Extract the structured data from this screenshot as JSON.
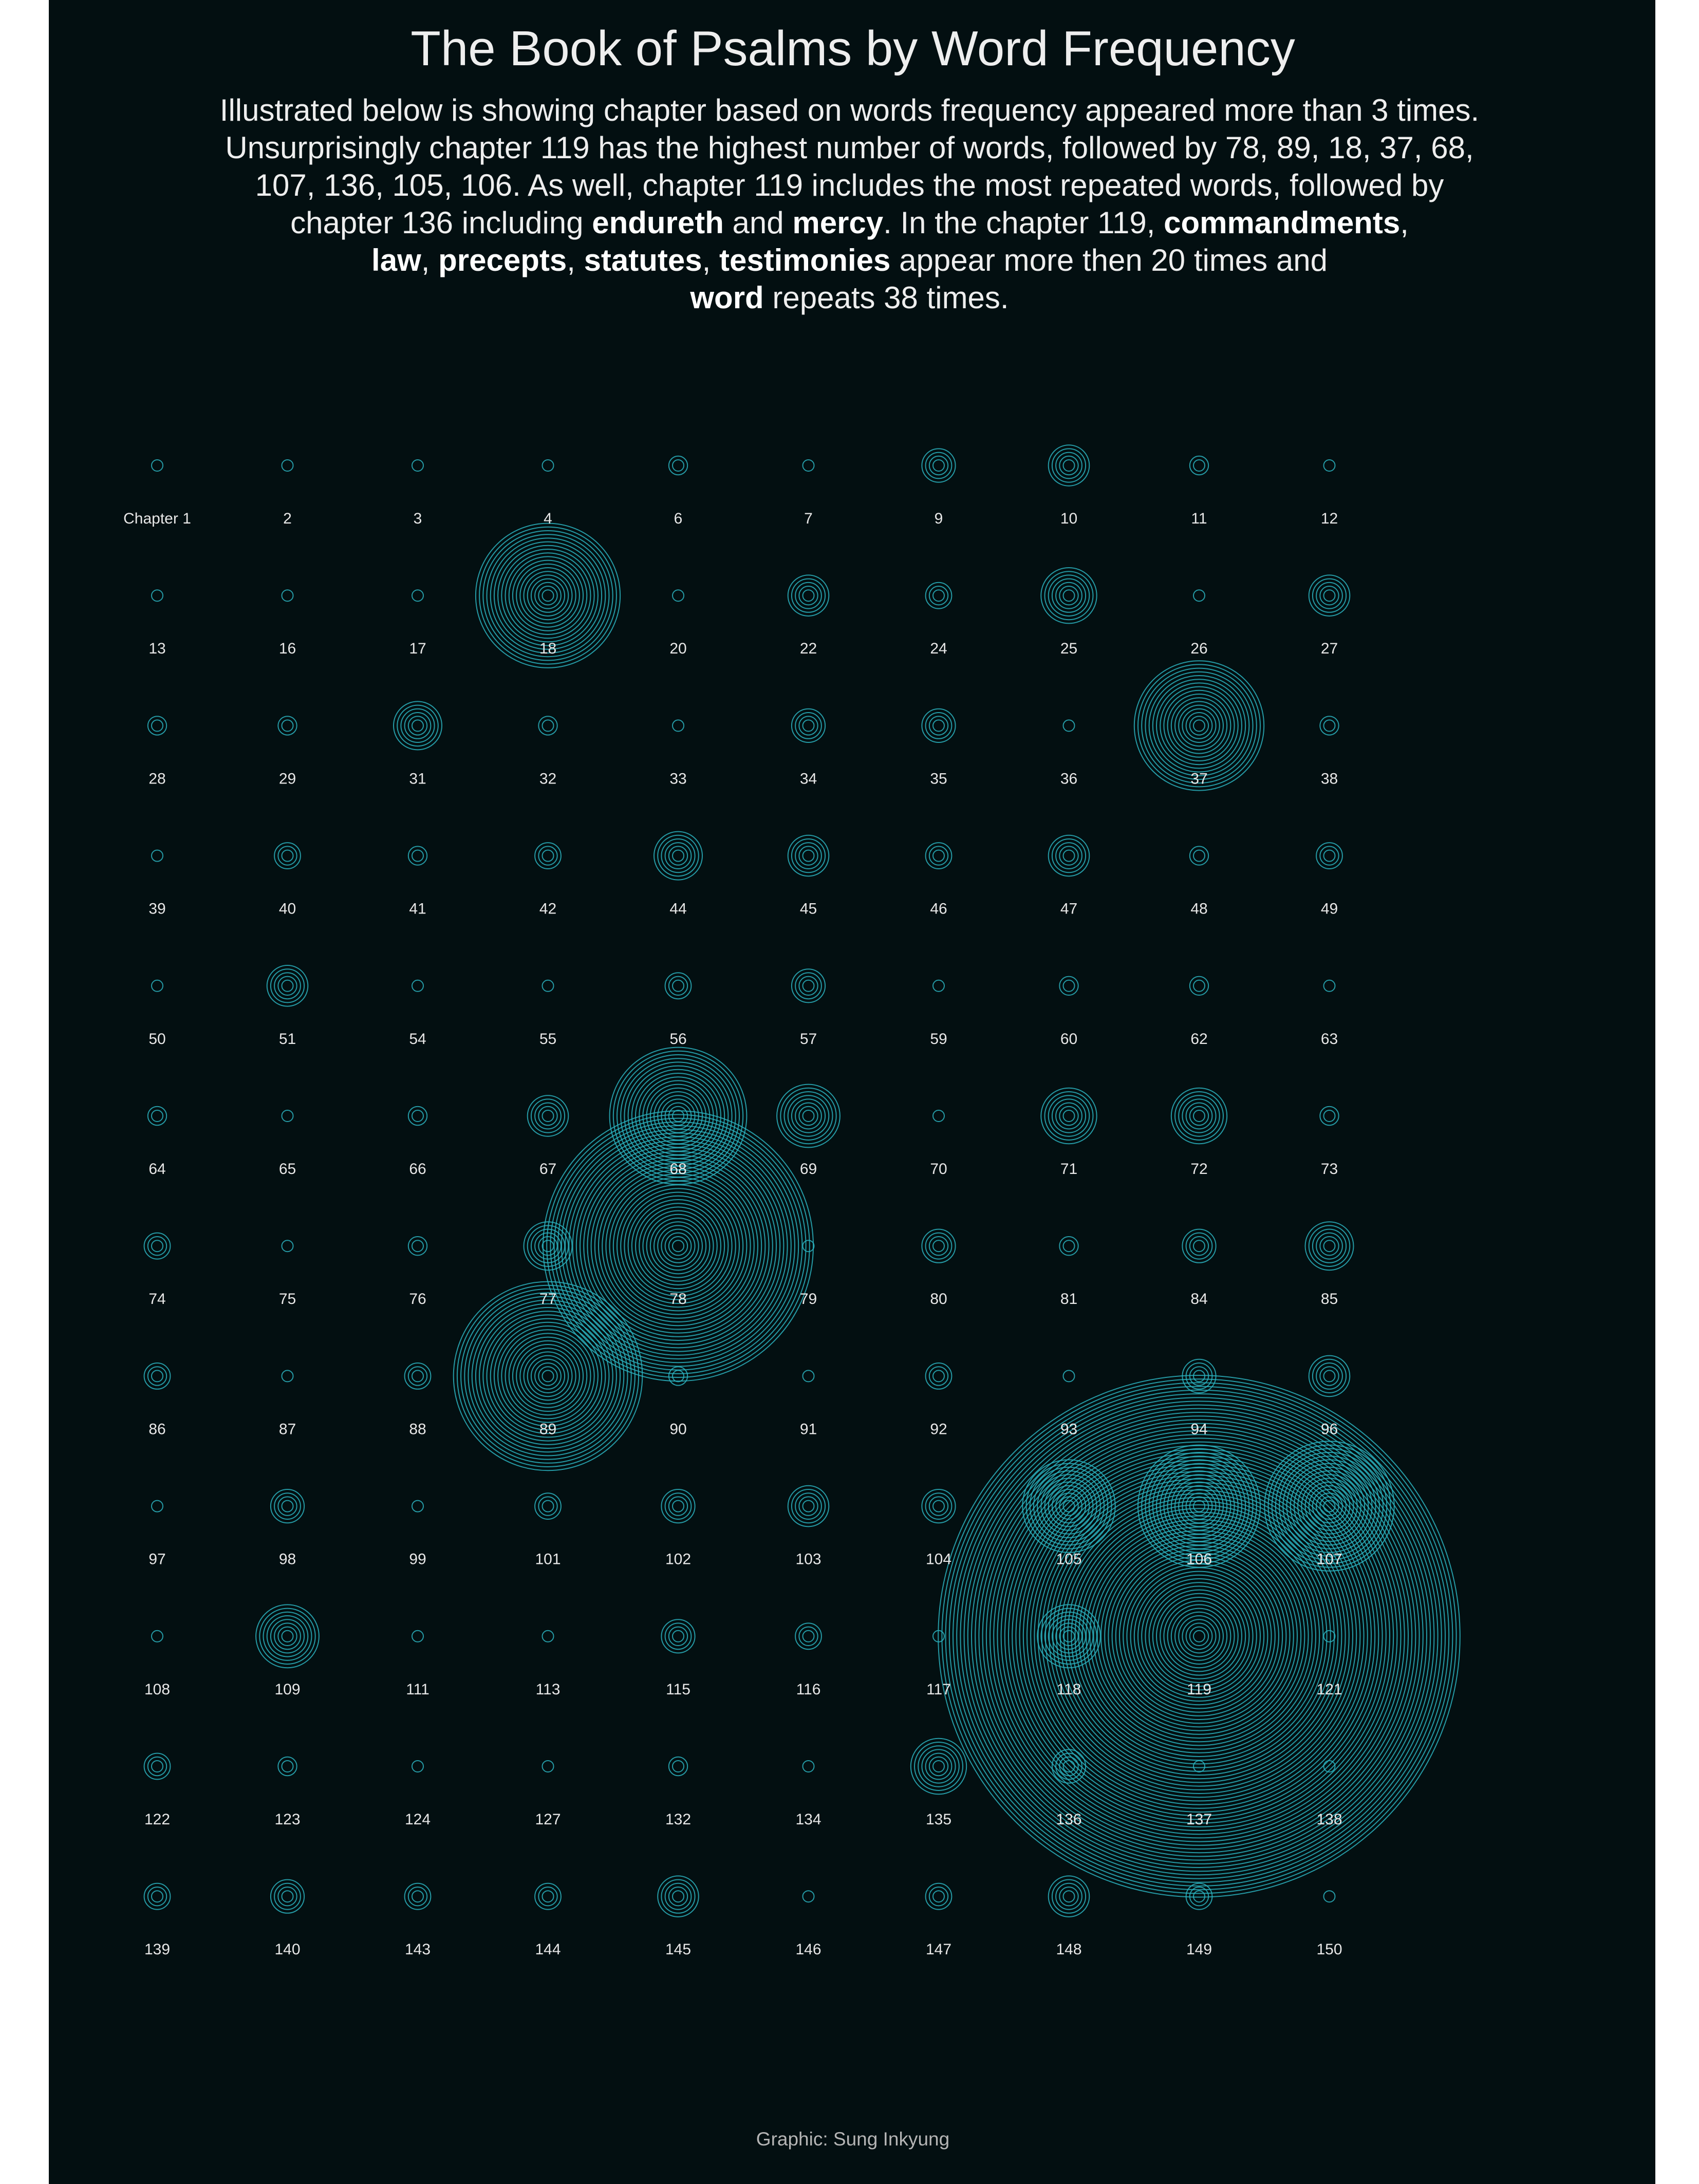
{
  "colors": {
    "background": "#030f11",
    "page_margin": "#ffffff",
    "ring": "#2bb3c0",
    "text": "#e8e8e8",
    "caption": "#b5b5b5"
  },
  "chart_data": {
    "type": "concentric-ring grid",
    "title": "The Book of Psalms by Word Frequency",
    "subtitle": "Illustrated below is showing chapter based on words frequency appeared more than 3 times. Unsurprisingly chapter 119 has the highest number of words, followed by 78, 89, 18, 37, 68, 107, 136, 105, 106. As well, chapter 119 includes the most repeated words, followed by chapter 136 including endureth and mercy. In the chapter 119, commandments, law, precepts, statutes, testimonies appear more then 20 times and word repeats 38 times.",
    "subtitle_parts": [
      {
        "text": "Illustrated below is showing chapter based on words frequency appeared more than 3 times.",
        "bold": false
      },
      {
        "br": true
      },
      {
        "text": "Unsurprisingly chapter 119 has the highest number of words, followed by 78, 89, 18, 37, 68,",
        "bold": false
      },
      {
        "br": true
      },
      {
        "text": "107, 136, 105, 106. As well, chapter 119 includes the most repeated words, followed by",
        "bold": false
      },
      {
        "br": true
      },
      {
        "text": "chapter 136 including ",
        "bold": false
      },
      {
        "text": "endureth",
        "bold": true
      },
      {
        "text": " and ",
        "bold": false
      },
      {
        "text": "mercy",
        "bold": true
      },
      {
        "text": ". In the chapter 119, ",
        "bold": false
      },
      {
        "text": "commandments",
        "bold": true
      },
      {
        "text": ",",
        "bold": false
      },
      {
        "br": true
      },
      {
        "text": "law",
        "bold": true
      },
      {
        "text": ", ",
        "bold": false
      },
      {
        "text": "precepts",
        "bold": true
      },
      {
        "text": ", ",
        "bold": false
      },
      {
        "text": "statutes",
        "bold": true
      },
      {
        "text": ", ",
        "bold": false
      },
      {
        "text": "testimonies",
        "bold": true
      },
      {
        "text": " appear more then 20 times and",
        "bold": false
      },
      {
        "br": true
      },
      {
        "text": "word",
        "bold": true
      },
      {
        "text": " repeats 38 times.",
        "bold": false
      }
    ],
    "caption": "Graphic: Sung Inkyung",
    "first_label_prefix": "Chapter ",
    "columns": 10,
    "ring_note": "each chapter is drawn as concentric rings; ring count approximates number of words appearing more than 3 times",
    "chapters": [
      {
        "chapter": 1,
        "rings": 1
      },
      {
        "chapter": 2,
        "rings": 1
      },
      {
        "chapter": 3,
        "rings": 1
      },
      {
        "chapter": 4,
        "rings": 1
      },
      {
        "chapter": 6,
        "rings": 2
      },
      {
        "chapter": 7,
        "rings": 1
      },
      {
        "chapter": 9,
        "rings": 4
      },
      {
        "chapter": 10,
        "rings": 5
      },
      {
        "chapter": 11,
        "rings": 2
      },
      {
        "chapter": 12,
        "rings": 1
      },
      {
        "chapter": 13,
        "rings": 1
      },
      {
        "chapter": 16,
        "rings": 1
      },
      {
        "chapter": 17,
        "rings": 1
      },
      {
        "chapter": 18,
        "rings": 19
      },
      {
        "chapter": 20,
        "rings": 1
      },
      {
        "chapter": 22,
        "rings": 5
      },
      {
        "chapter": 24,
        "rings": 3
      },
      {
        "chapter": 25,
        "rings": 7
      },
      {
        "chapter": 26,
        "rings": 1
      },
      {
        "chapter": 27,
        "rings": 5
      },
      {
        "chapter": 28,
        "rings": 2
      },
      {
        "chapter": 29,
        "rings": 2
      },
      {
        "chapter": 31,
        "rings": 6
      },
      {
        "chapter": 32,
        "rings": 2
      },
      {
        "chapter": 33,
        "rings": 1
      },
      {
        "chapter": 34,
        "rings": 4
      },
      {
        "chapter": 35,
        "rings": 4
      },
      {
        "chapter": 36,
        "rings": 1
      },
      {
        "chapter": 37,
        "rings": 17
      },
      {
        "chapter": 38,
        "rings": 2
      },
      {
        "chapter": 39,
        "rings": 1
      },
      {
        "chapter": 40,
        "rings": 3
      },
      {
        "chapter": 41,
        "rings": 2
      },
      {
        "chapter": 42,
        "rings": 3
      },
      {
        "chapter": 44,
        "rings": 6
      },
      {
        "chapter": 45,
        "rings": 5
      },
      {
        "chapter": 46,
        "rings": 3
      },
      {
        "chapter": 47,
        "rings": 5
      },
      {
        "chapter": 48,
        "rings": 2
      },
      {
        "chapter": 49,
        "rings": 3
      },
      {
        "chapter": 50,
        "rings": 1
      },
      {
        "chapter": 51,
        "rings": 5
      },
      {
        "chapter": 54,
        "rings": 1
      },
      {
        "chapter": 55,
        "rings": 1
      },
      {
        "chapter": 56,
        "rings": 3
      },
      {
        "chapter": 57,
        "rings": 4
      },
      {
        "chapter": 59,
        "rings": 1
      },
      {
        "chapter": 60,
        "rings": 2
      },
      {
        "chapter": 62,
        "rings": 2
      },
      {
        "chapter": 63,
        "rings": 1
      },
      {
        "chapter": 64,
        "rings": 2
      },
      {
        "chapter": 65,
        "rings": 1
      },
      {
        "chapter": 66,
        "rings": 2
      },
      {
        "chapter": 67,
        "rings": 5
      },
      {
        "chapter": 68,
        "rings": 18
      },
      {
        "chapter": 69,
        "rings": 8
      },
      {
        "chapter": 70,
        "rings": 1
      },
      {
        "chapter": 71,
        "rings": 7
      },
      {
        "chapter": 72,
        "rings": 7
      },
      {
        "chapter": 73,
        "rings": 2
      },
      {
        "chapter": 74,
        "rings": 3
      },
      {
        "chapter": 75,
        "rings": 1
      },
      {
        "chapter": 76,
        "rings": 2
      },
      {
        "chapter": 77,
        "rings": 6
      },
      {
        "chapter": 78,
        "rings": 36
      },
      {
        "chapter": 79,
        "rings": 1
      },
      {
        "chapter": 80,
        "rings": 4
      },
      {
        "chapter": 81,
        "rings": 2
      },
      {
        "chapter": 84,
        "rings": 4
      },
      {
        "chapter": 85,
        "rings": 6
      },
      {
        "chapter": 86,
        "rings": 3
      },
      {
        "chapter": 87,
        "rings": 1
      },
      {
        "chapter": 88,
        "rings": 3
      },
      {
        "chapter": 89,
        "rings": 25
      },
      {
        "chapter": 90,
        "rings": 2
      },
      {
        "chapter": 91,
        "rings": 1
      },
      {
        "chapter": 92,
        "rings": 3
      },
      {
        "chapter": 93,
        "rings": 1
      },
      {
        "chapter": 94,
        "rings": 4
      },
      {
        "chapter": 96,
        "rings": 5
      },
      {
        "chapter": 97,
        "rings": 1
      },
      {
        "chapter": 98,
        "rings": 4
      },
      {
        "chapter": 99,
        "rings": 1
      },
      {
        "chapter": 101,
        "rings": 3
      },
      {
        "chapter": 102,
        "rings": 4
      },
      {
        "chapter": 103,
        "rings": 5
      },
      {
        "chapter": 104,
        "rings": 4
      },
      {
        "chapter": 105,
        "rings": 12
      },
      {
        "chapter": 106,
        "rings": 16
      },
      {
        "chapter": 107,
        "rings": 17
      },
      {
        "chapter": 108,
        "rings": 1
      },
      {
        "chapter": 109,
        "rings": 8
      },
      {
        "chapter": 111,
        "rings": 1
      },
      {
        "chapter": 113,
        "rings": 1
      },
      {
        "chapter": 115,
        "rings": 4
      },
      {
        "chapter": 116,
        "rings": 3
      },
      {
        "chapter": 117,
        "rings": 1
      },
      {
        "chapter": 118,
        "rings": 8
      },
      {
        "chapter": 119,
        "rings": 70
      },
      {
        "chapter": 121,
        "rings": 1
      },
      {
        "chapter": 122,
        "rings": 3
      },
      {
        "chapter": 123,
        "rings": 2
      },
      {
        "chapter": 124,
        "rings": 1
      },
      {
        "chapter": 127,
        "rings": 1
      },
      {
        "chapter": 132,
        "rings": 2
      },
      {
        "chapter": 134,
        "rings": 1
      },
      {
        "chapter": 135,
        "rings": 7
      },
      {
        "chapter": 136,
        "rings": 4
      },
      {
        "chapter": 137,
        "rings": 1
      },
      {
        "chapter": 138,
        "rings": 1
      },
      {
        "chapter": 139,
        "rings": 3
      },
      {
        "chapter": 140,
        "rings": 4
      },
      {
        "chapter": 143,
        "rings": 3
      },
      {
        "chapter": 144,
        "rings": 3
      },
      {
        "chapter": 145,
        "rings": 5
      },
      {
        "chapter": 146,
        "rings": 1
      },
      {
        "chapter": 147,
        "rings": 3
      },
      {
        "chapter": 148,
        "rings": 5
      },
      {
        "chapter": 149,
        "rings": 3
      },
      {
        "chapter": 150,
        "rings": 1
      }
    ]
  }
}
